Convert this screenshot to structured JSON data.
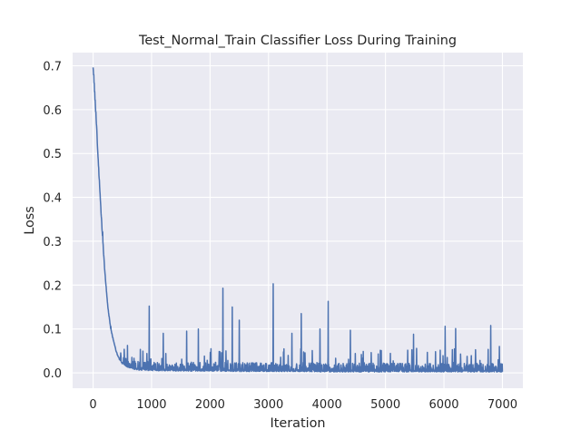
{
  "chart_data": {
    "type": "line",
    "title": "Test_Normal_Train Classifier Loss During Training",
    "xlabel": "Iteration",
    "ylabel": "Loss",
    "xlim": [
      -350,
      7350
    ],
    "ylim": [
      -0.035,
      0.73
    ],
    "xticks": [
      0,
      1000,
      2000,
      3000,
      4000,
      5000,
      6000,
      7000
    ],
    "xtick_labels": [
      "0",
      "1000",
      "2000",
      "3000",
      "4000",
      "5000",
      "6000",
      "7000"
    ],
    "yticks": [
      0.0,
      0.1,
      0.2,
      0.3,
      0.4,
      0.5,
      0.6,
      0.7
    ],
    "ytick_labels": [
      "0.0",
      "0.1",
      "0.2",
      "0.3",
      "0.4",
      "0.5",
      "0.6",
      "0.7"
    ],
    "grid": true,
    "background": "#eaeaf2",
    "grid_color": "#ffffff",
    "series": [
      {
        "color": "#4c72b0",
        "x": [
          0,
          50,
          100,
          150,
          200,
          250,
          300,
          350,
          400,
          450,
          500,
          600,
          700,
          800,
          1000,
          1500,
          2000,
          2500,
          3000,
          3500,
          4000,
          4500,
          5000,
          5500,
          6000,
          6500,
          7000
        ],
        "y": [
          0.695,
          0.58,
          0.45,
          0.33,
          0.23,
          0.15,
          0.1,
          0.07,
          0.045,
          0.03,
          0.02,
          0.012,
          0.008,
          0.006,
          0.005,
          0.004,
          0.004,
          0.003,
          0.003,
          0.003,
          0.002,
          0.002,
          0.002,
          0.002,
          0.002,
          0.002,
          0.002
        ],
        "spikes": [
          {
            "x": 960,
            "y": 0.152
          },
          {
            "x": 1200,
            "y": 0.09
          },
          {
            "x": 1600,
            "y": 0.095
          },
          {
            "x": 1800,
            "y": 0.1
          },
          {
            "x": 2220,
            "y": 0.193
          },
          {
            "x": 2380,
            "y": 0.15
          },
          {
            "x": 2500,
            "y": 0.12
          },
          {
            "x": 3080,
            "y": 0.203
          },
          {
            "x": 3400,
            "y": 0.09
          },
          {
            "x": 3560,
            "y": 0.135
          },
          {
            "x": 3880,
            "y": 0.1
          },
          {
            "x": 4020,
            "y": 0.163
          },
          {
            "x": 4400,
            "y": 0.097
          },
          {
            "x": 5480,
            "y": 0.088
          },
          {
            "x": 6020,
            "y": 0.106
          },
          {
            "x": 6200,
            "y": 0.101
          },
          {
            "x": 6800,
            "y": 0.108
          },
          {
            "x": 6950,
            "y": 0.06
          }
        ]
      }
    ]
  }
}
